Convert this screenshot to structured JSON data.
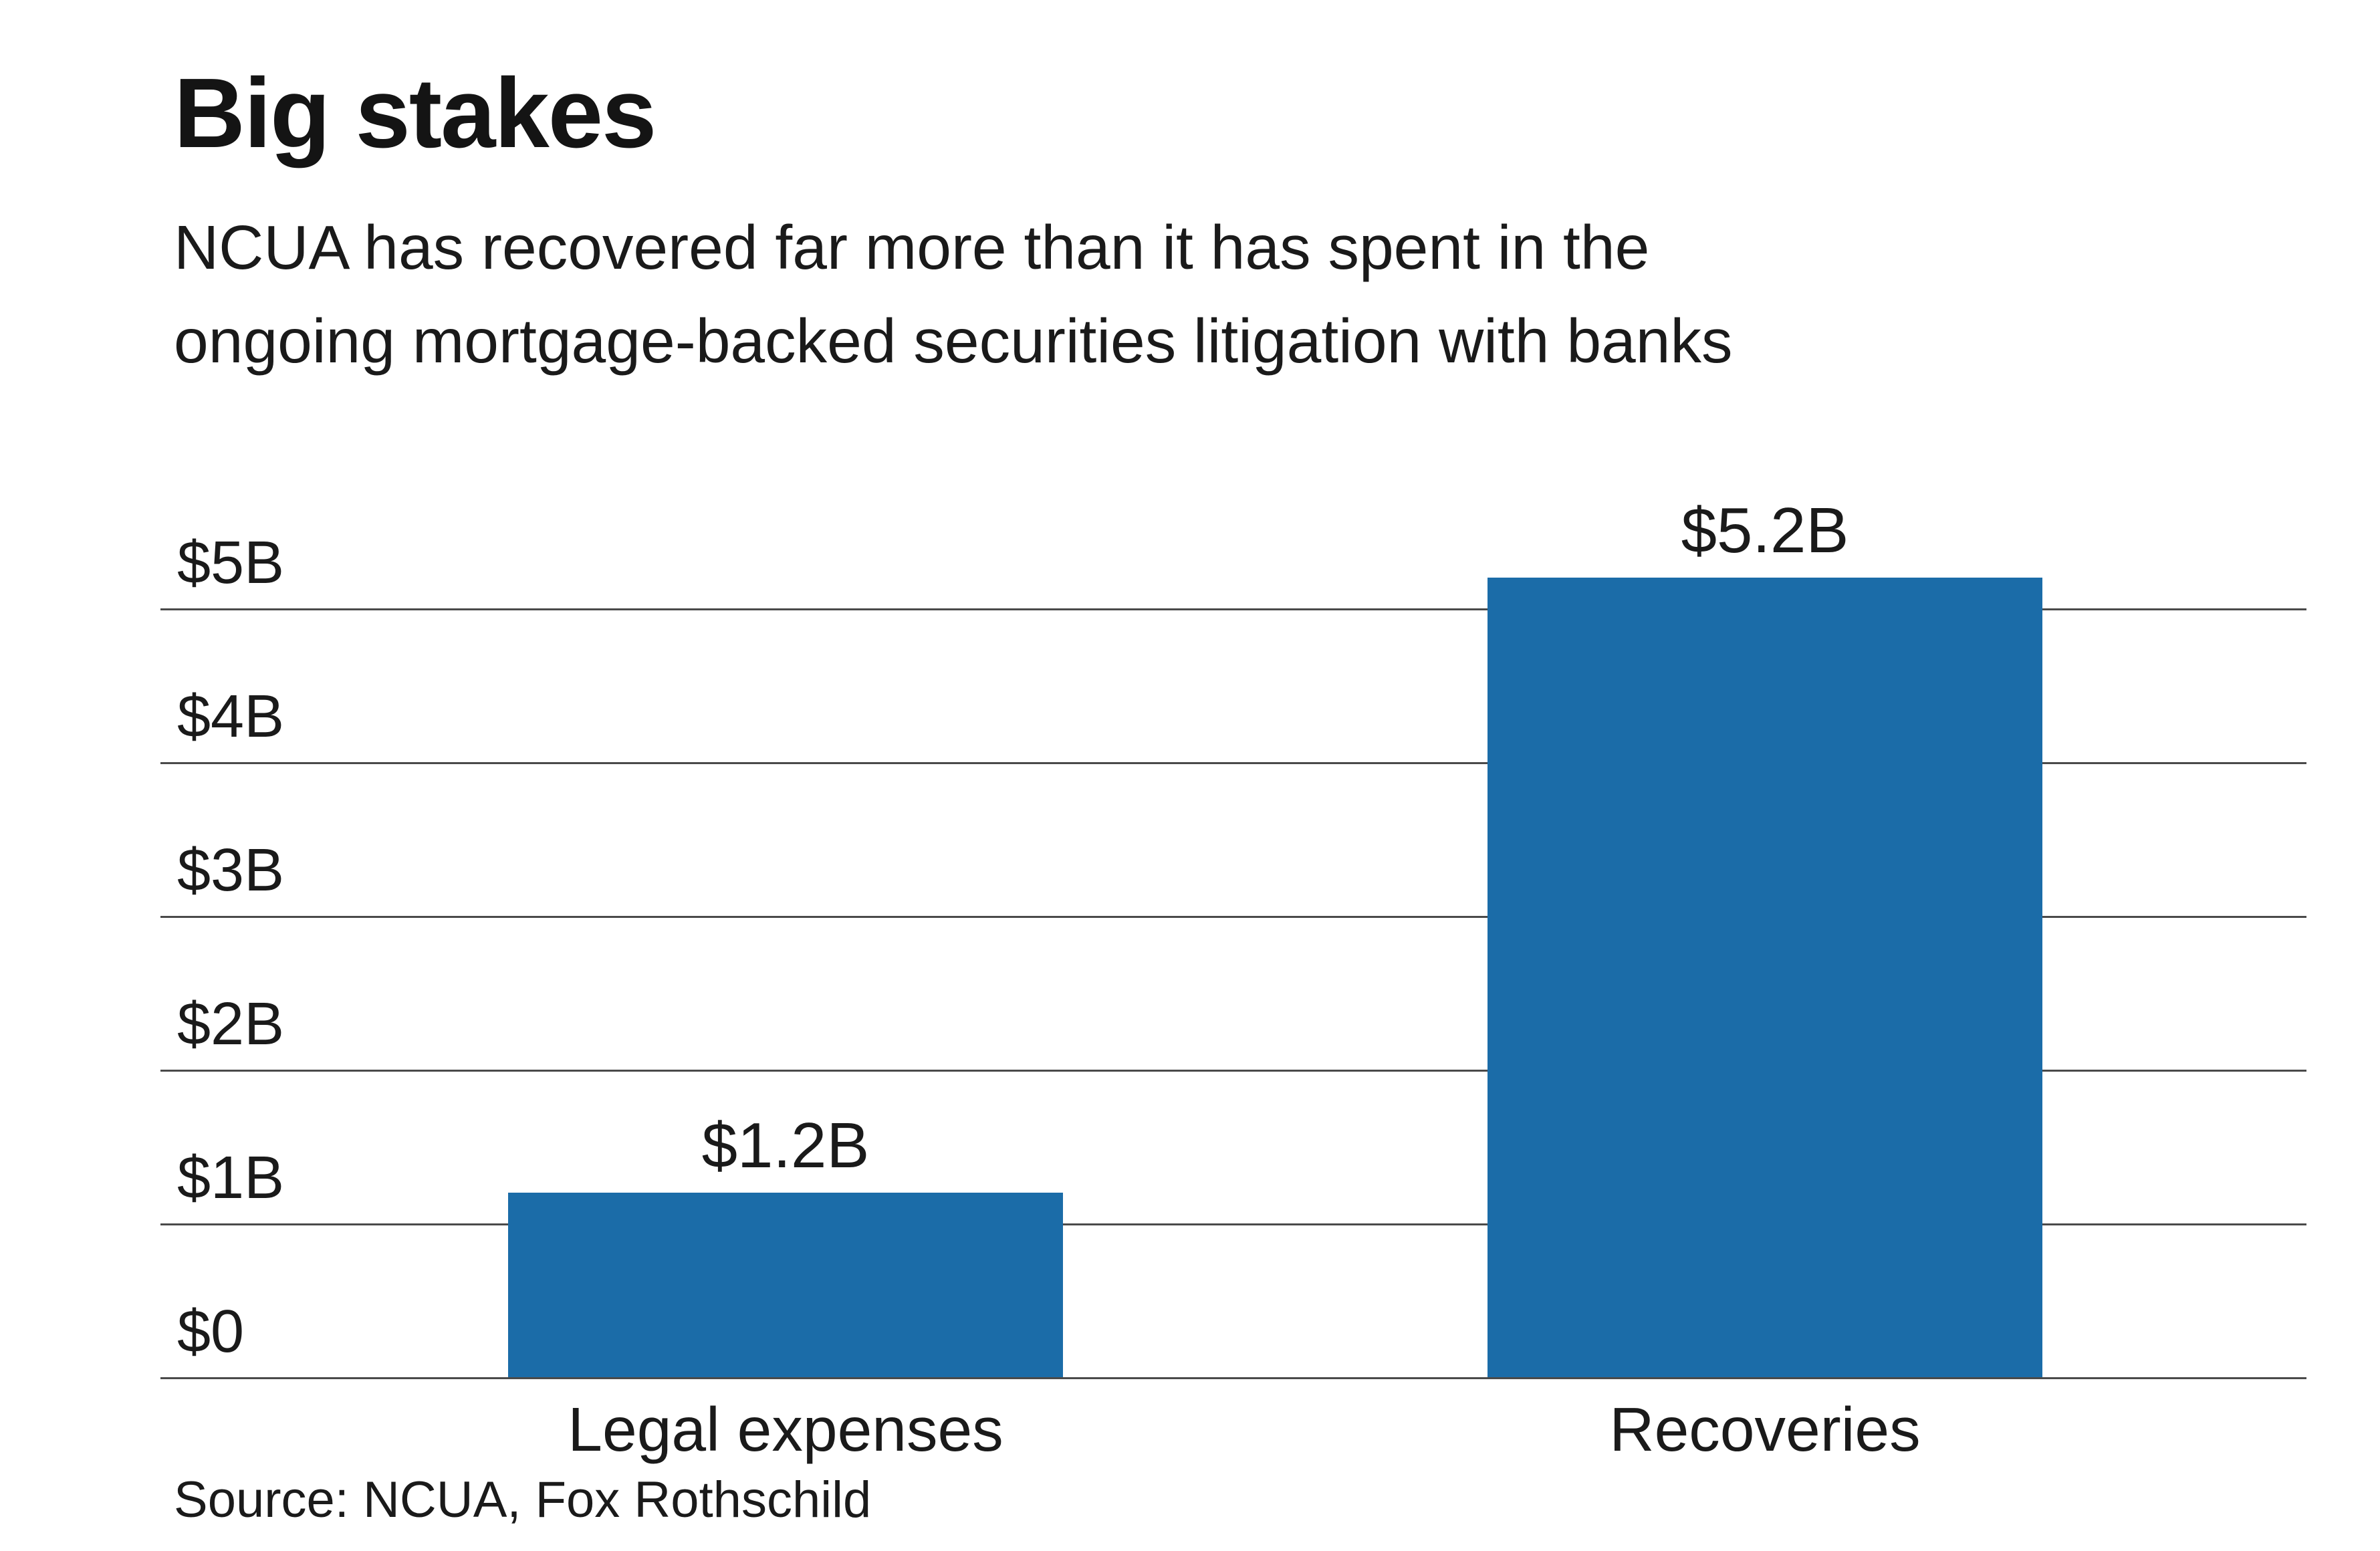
{
  "title": "Big stakes",
  "subtitle": {
    "line1": "NCUA has recovered far more than it has spent in the",
    "line2": "ongoing mortgage-backed securities litigation with banks"
  },
  "source": "Source: NCUA, Fox Rothschild",
  "colors": {
    "bar": "#1b6ca8",
    "text": "#1a1a1a",
    "gridline": "#4a4a4a",
    "background": "#ffffff"
  },
  "chart_data": {
    "type": "bar",
    "title": "Big stakes",
    "subtitle": "NCUA has recovered far more than it has spent in the ongoing mortgage-backed securities litigation with banks",
    "categories": [
      "Legal expenses",
      "Recoveries"
    ],
    "values": [
      1.2,
      5.2
    ],
    "value_labels": [
      "$1.2B",
      "$5.2B"
    ],
    "value_unit": "billions USD",
    "y_ticks": [
      "$0",
      "$1B",
      "$2B",
      "$3B",
      "$4B",
      "$5B"
    ],
    "y_tick_values": [
      0,
      1,
      2,
      3,
      4,
      5
    ],
    "ylim": [
      0,
      5.5
    ],
    "xlabel": "",
    "ylabel": "",
    "grid": true,
    "legend": false,
    "bar_color": "#1b6ca8",
    "source": "Source: NCUA, Fox Rothschild"
  }
}
